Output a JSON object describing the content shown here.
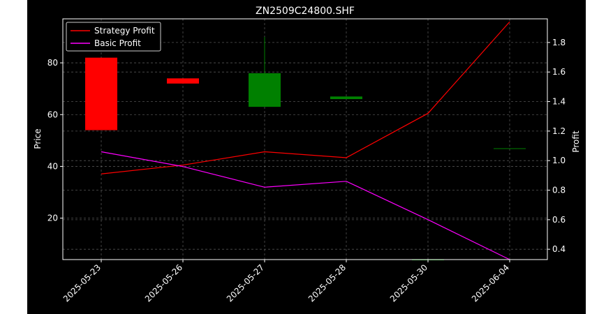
{
  "chart_data": {
    "type": "candlestick",
    "title": "ZN2509C24800.SHF",
    "xlabel": "",
    "ylabel": "Price",
    "ylabel_right": "Profit",
    "categories": [
      "2025-05-23",
      "2025-05-26",
      "2025-05-27",
      "2025-05-28",
      "2025-05-30",
      "2025-06-04"
    ],
    "ylim": [
      4.0,
      97.0
    ],
    "yticks": [
      20,
      40,
      60,
      80
    ],
    "ylim_right": [
      0.33,
      1.96
    ],
    "yticks_right": [
      0.4,
      0.6,
      0.8,
      1.0,
      1.2,
      1.4,
      1.6,
      1.8
    ],
    "candles": [
      {
        "date": "2025-05-23",
        "open": 82.0,
        "high": 82.0,
        "low": 54.0,
        "close": 54.0
      },
      {
        "date": "2025-05-26",
        "open": 74.0,
        "high": 74.0,
        "low": 72.0,
        "close": 72.0
      },
      {
        "date": "2025-05-27",
        "open": 63.0,
        "high": 90.0,
        "low": 63.0,
        "close": 76.0
      },
      {
        "date": "2025-05-28",
        "open": 66.0,
        "high": 67.0,
        "low": 66.0,
        "close": 67.0
      },
      {
        "date": "2025-05-30",
        "open": 4.0,
        "high": 4.0,
        "low": 4.0,
        "close": 4.0
      },
      {
        "date": "2025-06-04",
        "open": 47.0,
        "high": 47.0,
        "low": 47.0,
        "close": 47.0
      }
    ],
    "series": [
      {
        "name": "Strategy Profit",
        "axis": "right",
        "color": "#ff0000",
        "values": [
          0.91,
          0.97,
          1.06,
          1.02,
          1.32,
          1.94
        ]
      },
      {
        "name": "Basic Profit",
        "axis": "right",
        "color": "#ff00ff",
        "values": [
          1.06,
          0.96,
          0.82,
          0.86,
          0.6,
          0.33
        ]
      }
    ],
    "colors": {
      "up": "#008000",
      "down": "#ff0000"
    },
    "grid": true,
    "legend": "top-left"
  }
}
